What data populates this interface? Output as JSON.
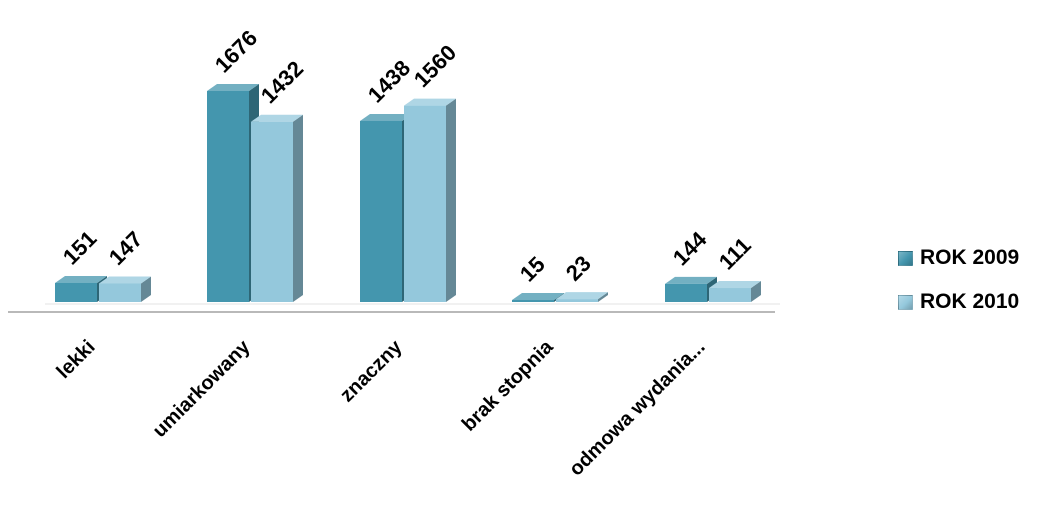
{
  "chart_data": {
    "type": "bar",
    "categories": [
      "lekki",
      "umiarkowany",
      "znaczny",
      "brak stopnia",
      "odmowa wydania..."
    ],
    "series": [
      {
        "name": "ROK 2009",
        "values": [
          151,
          1676,
          1438,
          15,
          144
        ]
      },
      {
        "name": "ROK 2010",
        "values": [
          147,
          1432,
          1560,
          23,
          111
        ]
      }
    ],
    "ylim": [
      0,
      1700
    ],
    "grid": false,
    "legend_position": "right",
    "colors": {
      "ROK 2009": "#4496ae",
      "ROK 2010": "#94c8dc"
    },
    "data_labels": true,
    "style": "3d-clustered-column"
  }
}
